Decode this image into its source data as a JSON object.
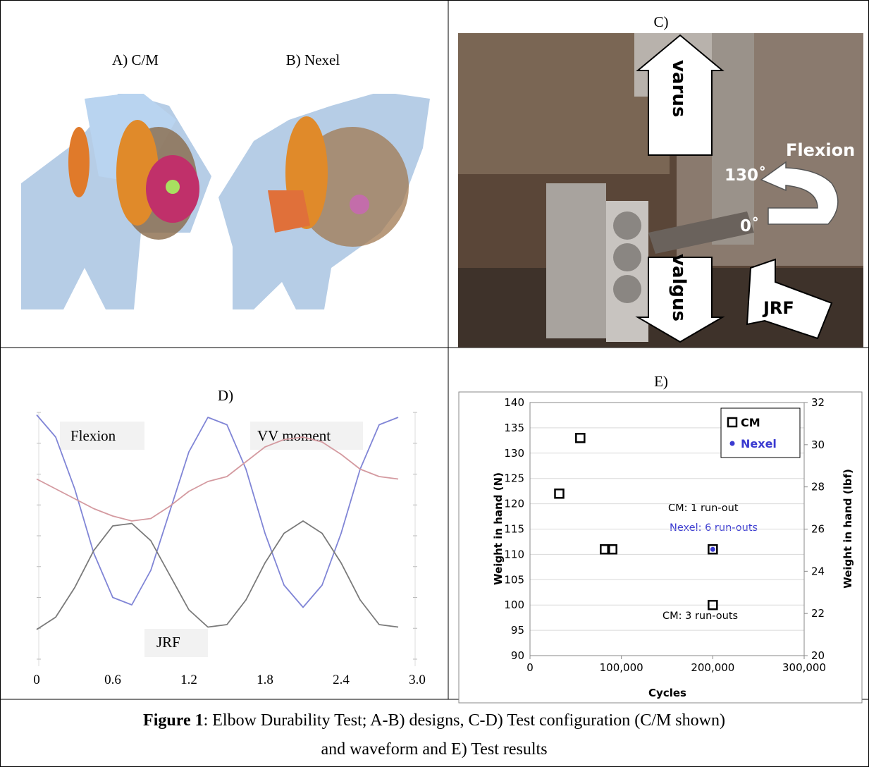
{
  "panels": {
    "a_label": "A) C/M",
    "b_label": "B) Nexel",
    "c": {
      "label": "C)",
      "varus": "varus",
      "valgus": "valgus",
      "flexion": "Flexion",
      "angle_max": "130˚",
      "angle_min": "0˚",
      "jrf": "JRF"
    }
  },
  "chart_data": [
    {
      "type": "line",
      "title": "D)",
      "x": [
        0,
        0.15,
        0.3,
        0.45,
        0.6,
        0.75,
        0.9,
        1.05,
        1.2,
        1.35,
        1.5,
        1.65,
        1.8,
        1.95,
        2.1,
        2.25,
        2.4,
        2.55,
        2.7,
        2.85
      ],
      "xlim": [
        0,
        3
      ],
      "xticks": [
        0,
        0.6,
        1.2,
        1.8,
        2.4,
        {
          "value": 3,
          "label": "3.0"
        }
      ],
      "ylim": [
        0,
        1
      ],
      "series": [
        {
          "name": "Flexion",
          "color": "#8085d6",
          "values": [
            0.99,
            0.9,
            0.69,
            0.43,
            0.25,
            0.22,
            0.36,
            0.6,
            0.84,
            0.98,
            0.95,
            0.77,
            0.51,
            0.3,
            0.21,
            0.3,
            0.51,
            0.77,
            0.95,
            0.98
          ]
        },
        {
          "name": "VV moment",
          "color": "#d49aa0",
          "values": [
            0.73,
            0.69,
            0.65,
            0.61,
            0.58,
            0.56,
            0.57,
            0.62,
            0.68,
            0.72,
            0.74,
            0.8,
            0.86,
            0.89,
            0.9,
            0.88,
            0.83,
            0.77,
            0.74,
            0.73
          ]
        },
        {
          "name": "JRF",
          "color": "#7a7a7a",
          "values": [
            0.12,
            0.17,
            0.29,
            0.44,
            0.54,
            0.55,
            0.48,
            0.34,
            0.2,
            0.13,
            0.14,
            0.24,
            0.39,
            0.51,
            0.56,
            0.51,
            0.39,
            0.24,
            0.14,
            0.13
          ]
        }
      ]
    },
    {
      "type": "scatter",
      "title": "E)",
      "x_label": "Cycles",
      "y_label": "Weight in hand (N)",
      "y2_label": "Weight in hand (lbf)",
      "xlim": [
        0,
        300000
      ],
      "xticks": [
        0,
        {
          "value": 100000,
          "label": "100,000"
        },
        {
          "value": 200000,
          "label": "200,000"
        },
        {
          "value": 300000,
          "label": "300,000"
        }
      ],
      "ylim": [
        90,
        140
      ],
      "yticks": [
        90,
        95,
        100,
        105,
        110,
        115,
        120,
        125,
        130,
        135,
        140
      ],
      "y2lim": [
        20,
        32
      ],
      "y2ticks": [
        20,
        22,
        24,
        26,
        28,
        30,
        32
      ],
      "grid": true,
      "legend": "upper right",
      "series": [
        {
          "name": "CM",
          "color": "#000000",
          "marker": "square",
          "x": [
            32000,
            55000,
            82000,
            90000,
            200000,
            200000
          ],
          "values": [
            122,
            133,
            111,
            111,
            111,
            100
          ]
        },
        {
          "name": "Nexel",
          "color": "#3a3ad0",
          "marker": "dot",
          "x": [
            200000
          ],
          "values": [
            111
          ]
        }
      ],
      "annotations": [
        "CM: 1 run-out",
        "Nexel: 6 run-outs",
        "CM: 3 run-outs"
      ]
    }
  ],
  "caption": {
    "bold": "Figure 1",
    "text": ": Elbow Durability Test; A-B) designs, C-D) Test configuration (C/M shown)",
    "text2": "and waveform and E) Test results"
  }
}
